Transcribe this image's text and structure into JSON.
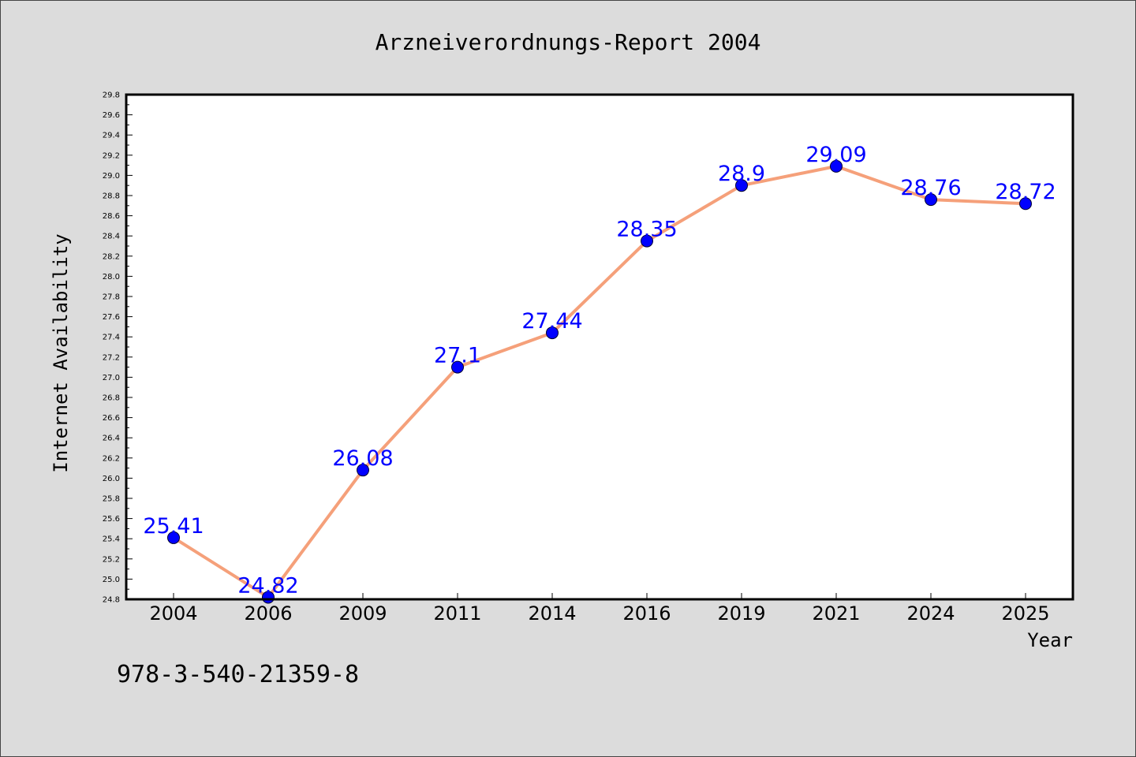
{
  "chart_data": {
    "type": "line",
    "title": "Arzneiverordnungs-Report 2004",
    "xlabel": "Year",
    "ylabel": "Internet Availability",
    "categories": [
      "2004",
      "2006",
      "2009",
      "2011",
      "2014",
      "2016",
      "2019",
      "2021",
      "2024",
      "2025"
    ],
    "series": [
      {
        "values": [
          25.41,
          24.82,
          26.08,
          27.1,
          27.44,
          28.35,
          28.9,
          29.09,
          28.76,
          28.72
        ]
      }
    ],
    "data_labels": [
      "25.41",
      "24.82",
      "26.08",
      "27.1",
      "27.44",
      "28.35",
      "28.9",
      "29.09",
      "28.76",
      "28.72"
    ],
    "ylim": [
      24.8,
      29.8
    ],
    "yticks": [
      "24.8",
      "25.0",
      "25.2",
      "25.4",
      "25.6",
      "25.8",
      "26.0",
      "26.2",
      "26.4",
      "26.6",
      "26.8",
      "27.0",
      "27.2",
      "27.4",
      "27.6",
      "27.8",
      "28.0",
      "28.2",
      "28.4",
      "28.6",
      "28.8",
      "29.0",
      "29.2",
      "29.4",
      "29.6",
      "29.8"
    ],
    "grid": false,
    "legend": "none",
    "colors": {
      "line": "#f5a07a",
      "marker": "#0000ff",
      "label": "#0000ff",
      "background": "#dcdcdc",
      "plot": "#ffffff"
    }
  },
  "footer": {
    "isbn": "978-3-540-21359-8"
  }
}
